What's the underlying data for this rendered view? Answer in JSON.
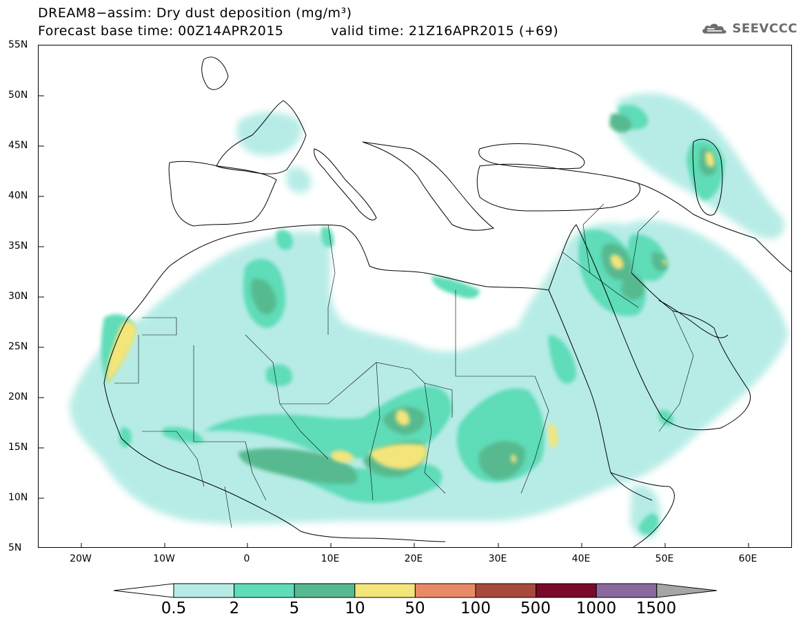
{
  "header": {
    "title_line1": "DREAM8−assim: Dry dust deposition (mg/m³)",
    "title_line2": "Forecast base time: 00Z14APR2015",
    "valid_time": "valid time: 21Z16APR2015 (+69)"
  },
  "logo": {
    "text": "SEEVCCC",
    "icon": "cloud-logo-icon"
  },
  "map": {
    "region": "North Africa, Europe, Middle East",
    "lat_labels": [
      "55N",
      "50N",
      "45N",
      "40N",
      "35N",
      "30N",
      "25N",
      "20N",
      "15N",
      "10N",
      "5N"
    ],
    "lon_labels": [
      "20W",
      "10W",
      "0",
      "10E",
      "20E",
      "30E",
      "40E",
      "50E",
      "60E"
    ]
  },
  "legend": {
    "labels": [
      "0.5",
      "2",
      "5",
      "10",
      "50",
      "100",
      "500",
      "1000",
      "1500"
    ],
    "colors": {
      "low": "#ffffff",
      "c1": "#b7ece6",
      "c2": "#5fdcb8",
      "c3": "#56b98f",
      "c4": "#f4e57a",
      "c5": "#e88a66",
      "c6": "#a74a3c",
      "c7": "#7a0a2a",
      "c8": "#8a6a9e",
      "high": "#a6a6a6"
    }
  }
}
